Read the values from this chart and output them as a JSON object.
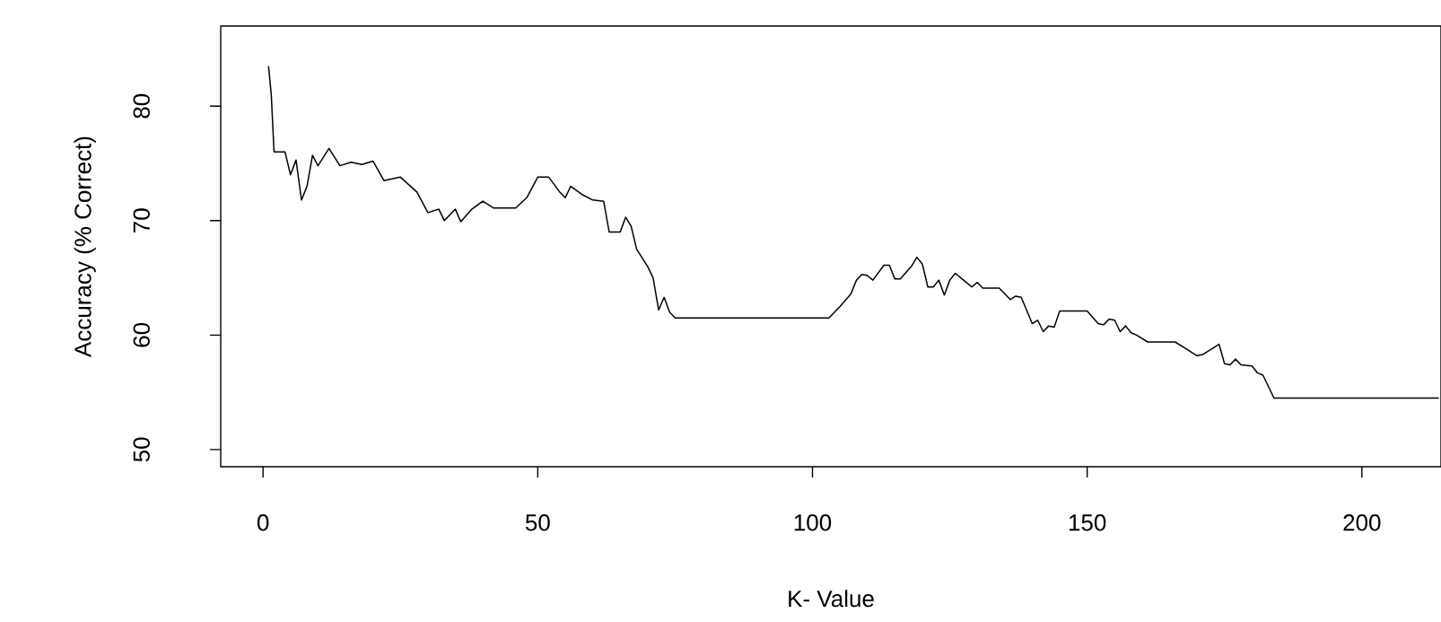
{
  "chart_data": {
    "type": "line",
    "xlabel": "K- Value",
    "ylabel": "Accuracy (% Correct)",
    "xlim": [
      -7.7,
      214.4
    ],
    "ylim": [
      48.5,
      87
    ],
    "xticks": [
      0,
      50,
      100,
      150,
      200
    ],
    "yticks": [
      50,
      60,
      70,
      80
    ],
    "grid": false,
    "marker": "none",
    "line_style": "solid",
    "series": [
      {
        "color": "#000000",
        "x": [
          1,
          1.5,
          2,
          4,
          5,
          6,
          7,
          8,
          9,
          10,
          12,
          14,
          16,
          18,
          20,
          22,
          25,
          28,
          30,
          32,
          33,
          35,
          36,
          38,
          40,
          42,
          46,
          48,
          50,
          52,
          54,
          55,
          56,
          58,
          60,
          62,
          63,
          65,
          66,
          67,
          68,
          70,
          71,
          72,
          73,
          74,
          75,
          103,
          105,
          107,
          108,
          109,
          110,
          111,
          113,
          114,
          115,
          116,
          118,
          119,
          120,
          121,
          122,
          123,
          124,
          125,
          126,
          128,
          129,
          130,
          131,
          134,
          136,
          137,
          138,
          140,
          141,
          142,
          143,
          144,
          145,
          150,
          152,
          153,
          154,
          155,
          156,
          157,
          158,
          159,
          161,
          166,
          168,
          170,
          171,
          173,
          174,
          175,
          176,
          177,
          178,
          180,
          181,
          182,
          184,
          214
        ],
        "values": [
          83.5,
          81,
          76,
          76,
          74,
          75.3,
          71.8,
          73,
          75.7,
          74.8,
          76.3,
          74.8,
          75.1,
          74.9,
          75.2,
          73.5,
          73.8,
          72.5,
          70.7,
          71,
          70,
          71,
          69.9,
          71,
          71.7,
          71.1,
          71.1,
          72,
          73.8,
          73.8,
          72.5,
          72,
          73,
          72.3,
          71.8,
          71.7,
          69,
          69,
          70.3,
          69.5,
          67.5,
          66,
          65,
          62.2,
          63.3,
          62,
          61.5,
          61.5,
          62.5,
          63.6,
          64.8,
          65.3,
          65.2,
          64.8,
          66.1,
          66.1,
          64.9,
          64.9,
          66,
          66.8,
          66.2,
          64.2,
          64.2,
          64.8,
          63.5,
          64.8,
          65.4,
          64.6,
          64.2,
          64.6,
          64.1,
          64.1,
          63.1,
          63.4,
          63.3,
          61,
          61.3,
          60.3,
          60.8,
          60.7,
          62.1,
          62.1,
          61,
          60.9,
          61.4,
          61.3,
          60.3,
          60.8,
          60.2,
          60,
          59.4,
          59.4,
          58.8,
          58.2,
          58.3,
          58.9,
          59.2,
          57.5,
          57.4,
          57.9,
          57.4,
          57.3,
          56.7,
          56.5,
          54.5,
          54.5
        ]
      }
    ]
  }
}
